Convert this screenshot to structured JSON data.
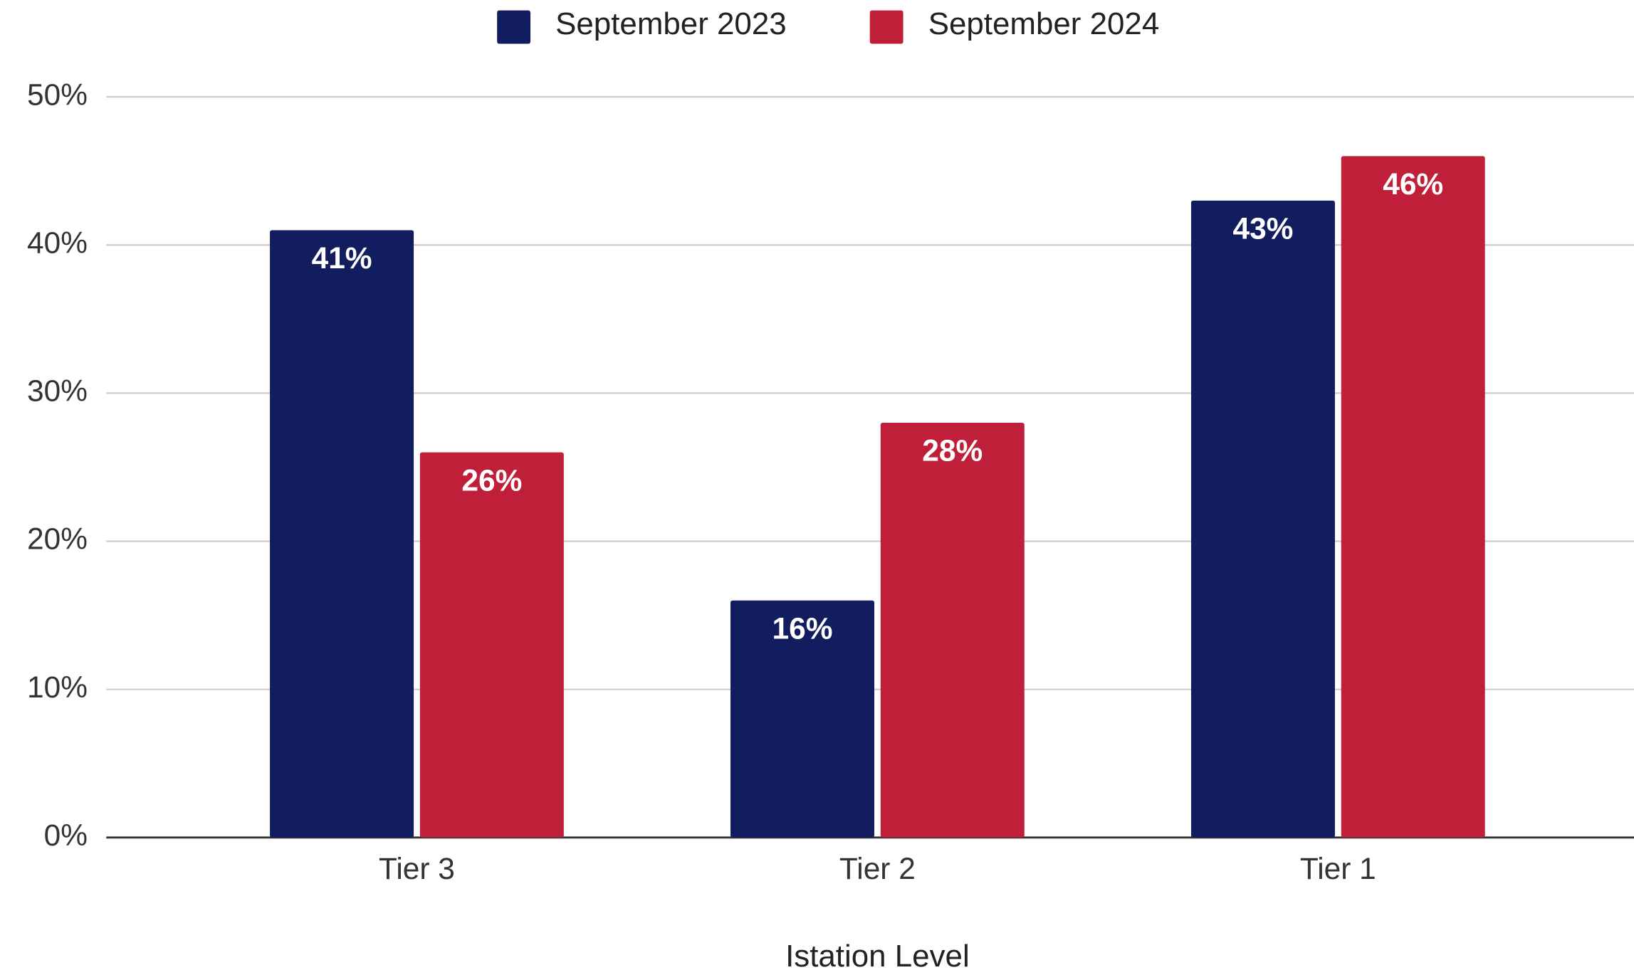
{
  "chart_data": {
    "type": "bar",
    "categories": [
      "Tier 3",
      "Tier 2",
      "Tier 1"
    ],
    "series": [
      {
        "name": "September 2023",
        "color": "#111d5e",
        "values": [
          41,
          16,
          43
        ],
        "value_labels": [
          "41%",
          "16%",
          "43%"
        ]
      },
      {
        "name": "September 2024",
        "color": "#c01f3a",
        "values": [
          26,
          28,
          46
        ],
        "value_labels": [
          "26%",
          "28%",
          "46%"
        ]
      }
    ],
    "x_label": "Istation Level",
    "ylim": [
      0,
      50
    ],
    "yticks": [
      {
        "value": 0,
        "label": "0%"
      },
      {
        "value": 10,
        "label": "10%"
      },
      {
        "value": 20,
        "label": "20%"
      },
      {
        "value": 30,
        "label": "30%"
      },
      {
        "value": 40,
        "label": "40%"
      },
      {
        "value": 50,
        "label": "50%"
      }
    ],
    "grid": true,
    "legend": "top"
  }
}
